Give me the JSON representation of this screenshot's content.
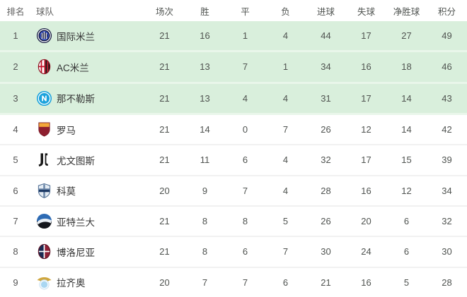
{
  "table": {
    "headers": [
      "排名",
      "球队",
      "场次",
      "胜",
      "平",
      "负",
      "进球",
      "失球",
      "净胜球",
      "积分"
    ],
    "rows": [
      {
        "rank": "1",
        "team": "国际米兰",
        "logo": "inter-milan-logo",
        "played": "21",
        "won": "16",
        "drawn": "1",
        "lost": "4",
        "goals_for": "44",
        "goals_against": "17",
        "goal_diff": "27",
        "points": "49",
        "highlight": true
      },
      {
        "rank": "2",
        "team": "AC米兰",
        "logo": "ac-milan-logo",
        "played": "21",
        "won": "13",
        "drawn": "7",
        "lost": "1",
        "goals_for": "34",
        "goals_against": "16",
        "goal_diff": "18",
        "points": "46",
        "highlight": true
      },
      {
        "rank": "3",
        "team": "那不勒斯",
        "logo": "napoli-logo",
        "played": "21",
        "won": "13",
        "drawn": "4",
        "lost": "4",
        "goals_for": "31",
        "goals_against": "17",
        "goal_diff": "14",
        "points": "43",
        "highlight": true
      },
      {
        "rank": "4",
        "team": "罗马",
        "logo": "roma-logo",
        "played": "21",
        "won": "14",
        "drawn": "0",
        "lost": "7",
        "goals_for": "26",
        "goals_against": "12",
        "goal_diff": "14",
        "points": "42",
        "highlight": false
      },
      {
        "rank": "5",
        "team": "尤文图斯",
        "logo": "juventus-logo",
        "played": "21",
        "won": "11",
        "drawn": "6",
        "lost": "4",
        "goals_for": "32",
        "goals_against": "17",
        "goal_diff": "15",
        "points": "39",
        "highlight": false
      },
      {
        "rank": "6",
        "team": "科莫",
        "logo": "como-logo",
        "played": "20",
        "won": "9",
        "drawn": "7",
        "lost": "4",
        "goals_for": "28",
        "goals_against": "16",
        "goal_diff": "12",
        "points": "34",
        "highlight": false
      },
      {
        "rank": "7",
        "team": "亚特兰大",
        "logo": "atalanta-logo",
        "played": "21",
        "won": "8",
        "drawn": "8",
        "lost": "5",
        "goals_for": "26",
        "goals_against": "20",
        "goal_diff": "6",
        "points": "32",
        "highlight": false
      },
      {
        "rank": "8",
        "team": "博洛尼亚",
        "logo": "bologna-logo",
        "played": "21",
        "won": "8",
        "drawn": "6",
        "lost": "7",
        "goals_for": "30",
        "goals_against": "24",
        "goal_diff": "6",
        "points": "30",
        "highlight": false
      },
      {
        "rank": "9",
        "team": "拉齐奥",
        "logo": "lazio-logo",
        "played": "20",
        "won": "7",
        "drawn": "7",
        "lost": "6",
        "goals_for": "21",
        "goals_against": "16",
        "goal_diff": "5",
        "points": "28",
        "highlight": false
      }
    ]
  },
  "colors": {
    "highlight_row_bg": "#d9efdc",
    "highlight_separator": "#e9f6ea",
    "row_separator": "#f1f1f1",
    "header_text": "#5f5f5f",
    "number_text": "#4f5350",
    "team_text": "#333333",
    "rank_text": "#555555"
  }
}
